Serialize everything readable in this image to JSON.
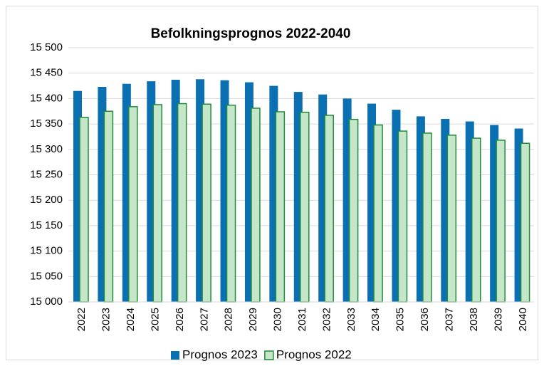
{
  "chart_data": {
    "type": "bar",
    "title": "Befolkningsprognos 2022-2040",
    "categories": [
      "2022",
      "2023",
      "2024",
      "2025",
      "2026",
      "2027",
      "2028",
      "2029",
      "2030",
      "2031",
      "2032",
      "2033",
      "2034",
      "2035",
      "2036",
      "2037",
      "2038",
      "2039",
      "2040"
    ],
    "series": [
      {
        "name": "Prognos 2023",
        "color": "#0a70b2",
        "values": [
          15415,
          15423,
          15429,
          15434,
          15437,
          15438,
          15436,
          15432,
          15425,
          15413,
          15408,
          15400,
          15390,
          15378,
          15365,
          15360,
          15355,
          15348,
          15341
        ]
      },
      {
        "name": "Prognos 2022",
        "color": "#c5e6c8",
        "values": [
          15363,
          15375,
          15384,
          15388,
          15390,
          15389,
          15387,
          15381,
          15374,
          15373,
          15367,
          15359,
          15348,
          15336,
          15332,
          15328,
          15322,
          15318,
          15312
        ]
      }
    ],
    "ylim": [
      15000,
      15500
    ],
    "yticks": [
      {
        "value": 15000,
        "label": "15 000"
      },
      {
        "value": 15050,
        "label": "15 050"
      },
      {
        "value": 15100,
        "label": "15 100"
      },
      {
        "value": 15150,
        "label": "15 150"
      },
      {
        "value": 15200,
        "label": "15 200"
      },
      {
        "value": 15250,
        "label": "15 250"
      },
      {
        "value": 15300,
        "label": "15 300"
      },
      {
        "value": 15350,
        "label": "15 350"
      },
      {
        "value": 15400,
        "label": "15 400"
      },
      {
        "value": 15450,
        "label": "15 450"
      },
      {
        "value": 15500,
        "label": "15 500"
      }
    ],
    "grid": true,
    "legend": "bottom"
  }
}
